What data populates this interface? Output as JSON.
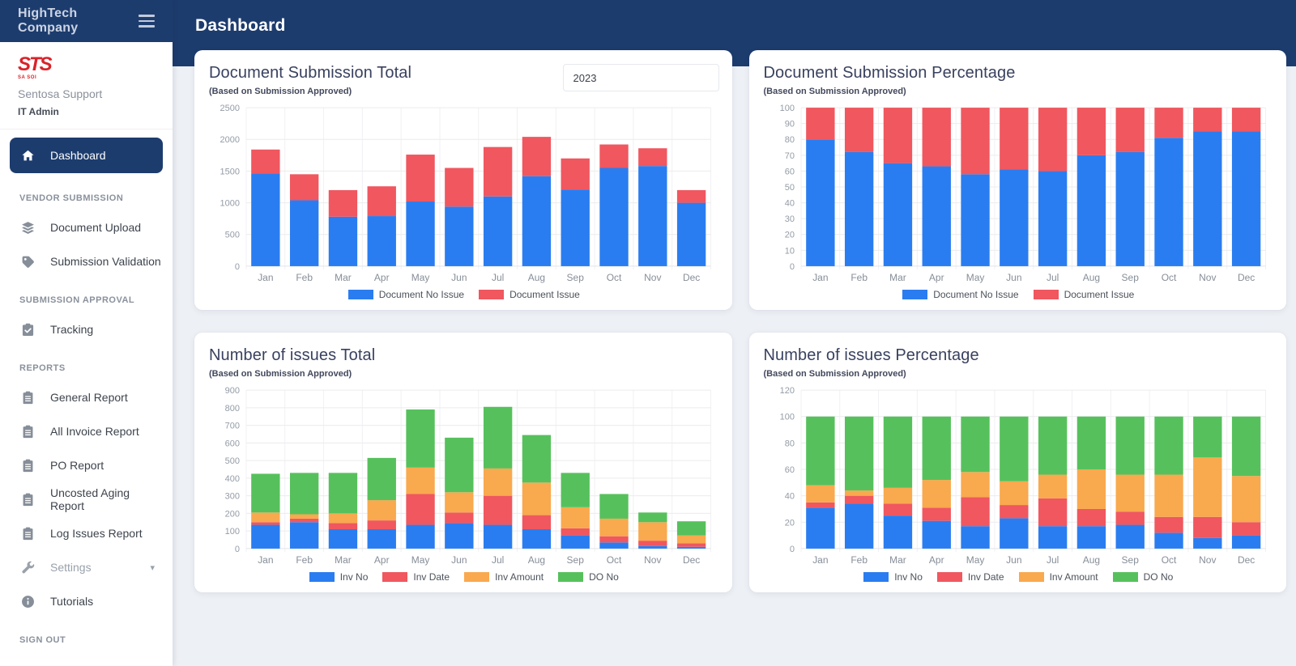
{
  "sidebar": {
    "brand": "HighTech Company",
    "logo_mark": "STS",
    "logo_caption": "SA SOI",
    "org_name": "Sentosa Support",
    "user_role": "IT Admin",
    "nav": [
      {
        "type": "item",
        "label": "Dashboard",
        "icon": "home-icon",
        "active": true
      },
      {
        "type": "section",
        "label": "VENDOR SUBMISSION"
      },
      {
        "type": "item",
        "label": "Document Upload",
        "icon": "layers-icon"
      },
      {
        "type": "item",
        "label": "Submission Validation",
        "icon": "tags-icon"
      },
      {
        "type": "section",
        "label": "SUBMISSION APPROVAL"
      },
      {
        "type": "item",
        "label": "Tracking",
        "icon": "clipboard-check-icon"
      },
      {
        "type": "section",
        "label": "REPORTS"
      },
      {
        "type": "item",
        "label": "General Report",
        "icon": "report-icon"
      },
      {
        "type": "item",
        "label": "All Invoice Report",
        "icon": "report-icon"
      },
      {
        "type": "item",
        "label": "PO Report",
        "icon": "report-icon"
      },
      {
        "type": "item",
        "label": "Uncosted Aging Report",
        "icon": "report-icon"
      },
      {
        "type": "item",
        "label": "Log Issues Report",
        "icon": "report-icon"
      },
      {
        "type": "item",
        "label": "Settings",
        "icon": "wrench-icon",
        "muted": true,
        "caret": true
      },
      {
        "type": "item",
        "label": "Tutorials",
        "icon": "info-icon"
      },
      {
        "type": "section",
        "label": "SIGN OUT"
      }
    ]
  },
  "header": {
    "page_title": "Dashboard"
  },
  "cards": [
    {
      "has_year_filter": true,
      "year_value": "2023"
    },
    {
      "has_year_filter": false
    },
    {
      "has_year_filter": false
    },
    {
      "has_year_filter": false
    }
  ],
  "chart_data": [
    {
      "type": "bar",
      "stacked": true,
      "title": "Document Submission Total",
      "subtitle": "(Based on Submission Approved)",
      "categories": [
        "Jan",
        "Feb",
        "Mar",
        "Apr",
        "May",
        "Jun",
        "Jul",
        "Aug",
        "Sep",
        "Oct",
        "Nov",
        "Dec"
      ],
      "series": [
        {
          "name": "Document No Issue",
          "color": "#2a7df0",
          "values": [
            1460,
            1040,
            780,
            790,
            1020,
            940,
            1100,
            1420,
            1210,
            1550,
            1580,
            1000
          ]
        },
        {
          "name": "Document Issue",
          "color": "#f0575f",
          "values": [
            380,
            410,
            420,
            470,
            740,
            610,
            780,
            620,
            490,
            370,
            280,
            200
          ]
        }
      ],
      "ylim": [
        0,
        2500
      ],
      "ytick_step": 500,
      "grid": true,
      "legend_position": "bottom"
    },
    {
      "type": "bar",
      "stacked": true,
      "title": "Document Submission Percentage",
      "subtitle": "(Based on Submission Approved)",
      "categories": [
        "Jan",
        "Feb",
        "Mar",
        "Apr",
        "May",
        "Jun",
        "Jul",
        "Aug",
        "Sep",
        "Oct",
        "Nov",
        "Dec"
      ],
      "series": [
        {
          "name": "Document No Issue",
          "color": "#2a7df0",
          "values": [
            80,
            72,
            65,
            63,
            58,
            61,
            60,
            70,
            72,
            81,
            85,
            85
          ]
        },
        {
          "name": "Document Issue",
          "color": "#f0575f",
          "values": [
            20,
            28,
            35,
            37,
            42,
            39,
            40,
            30,
            28,
            19,
            15,
            15
          ]
        }
      ],
      "ylim": [
        0,
        100
      ],
      "ytick_step": 10,
      "grid": true,
      "legend_position": "bottom"
    },
    {
      "type": "bar",
      "stacked": true,
      "title": "Number of issues Total",
      "subtitle": "(Based on Submission Approved)",
      "categories": [
        "Jan",
        "Feb",
        "Mar",
        "Apr",
        "May",
        "Jun",
        "Jul",
        "Aug",
        "Sep",
        "Oct",
        "Nov",
        "Dec"
      ],
      "series": [
        {
          "name": "Inv No",
          "color": "#2a7df0",
          "values": [
            135,
            150,
            110,
            110,
            135,
            145,
            135,
            110,
            75,
            35,
            15,
            10
          ]
        },
        {
          "name": "Inv Date",
          "color": "#f0575f",
          "values": [
            15,
            20,
            35,
            50,
            175,
            60,
            165,
            80,
            40,
            35,
            30,
            20
          ]
        },
        {
          "name": "Inv Amount",
          "color": "#f9a94e",
          "values": [
            55,
            25,
            55,
            115,
            150,
            115,
            155,
            185,
            120,
            100,
            105,
            45
          ]
        },
        {
          "name": "DO No",
          "color": "#56c15c",
          "values": [
            220,
            235,
            230,
            240,
            330,
            310,
            350,
            270,
            195,
            140,
            55,
            80
          ]
        }
      ],
      "ylim": [
        0,
        900
      ],
      "ytick_step": 100,
      "grid": true,
      "legend_position": "bottom"
    },
    {
      "type": "bar",
      "stacked": true,
      "title": "Number of issues Percentage",
      "subtitle": "(Based on Submission Approved)",
      "categories": [
        "Jan",
        "Feb",
        "Mar",
        "Apr",
        "May",
        "Jun",
        "Jul",
        "Aug",
        "Sep",
        "Oct",
        "Nov",
        "Dec"
      ],
      "series": [
        {
          "name": "Inv No",
          "color": "#2a7df0",
          "values": [
            31,
            34,
            25,
            21,
            17,
            23,
            17,
            17,
            18,
            12,
            8,
            10
          ]
        },
        {
          "name": "Inv Date",
          "color": "#f0575f",
          "values": [
            4,
            6,
            9,
            10,
            22,
            10,
            21,
            13,
            10,
            12,
            16,
            10
          ]
        },
        {
          "name": "Inv Amount",
          "color": "#f9a94e",
          "values": [
            13,
            4,
            12,
            21,
            19,
            18,
            18,
            30,
            28,
            32,
            45,
            35
          ]
        },
        {
          "name": "DO No",
          "color": "#56c15c",
          "values": [
            52,
            56,
            54,
            48,
            42,
            49,
            44,
            40,
            44,
            44,
            31,
            45
          ]
        }
      ],
      "ylim": [
        0,
        120
      ],
      "ytick_step": 20,
      "grid": true,
      "legend_position": "bottom"
    }
  ],
  "colors": {
    "header_navy": "#1d3c6e",
    "background": "#edf0f5",
    "logo_red": "#d9232a"
  }
}
